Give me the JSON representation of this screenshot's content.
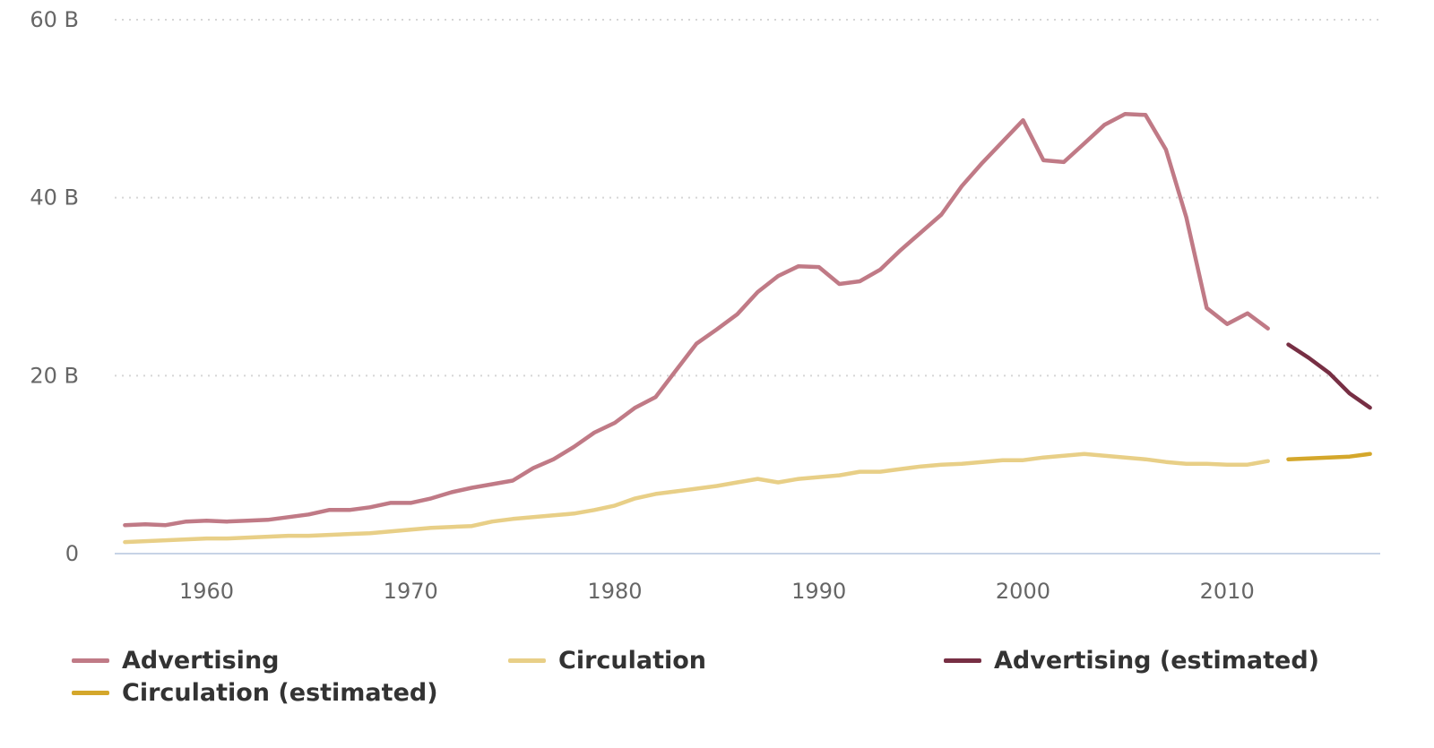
{
  "chart_data": {
    "type": "line",
    "title": "",
    "xlabel": "",
    "ylabel": "",
    "xlim": [
      1955.5,
      2017.5
    ],
    "ylim": [
      0,
      60
    ],
    "x_ticks": [
      1960,
      1970,
      1980,
      1990,
      2000,
      2010
    ],
    "y_ticks": [
      {
        "value": 0,
        "label": "0"
      },
      {
        "value": 20,
        "label": "20 B"
      },
      {
        "value": 40,
        "label": "40 B"
      },
      {
        "value": 60,
        "label": "60 B"
      }
    ],
    "grid": "horizontal-dotted",
    "legend_position": "bottom",
    "series": [
      {
        "name": "Advertising",
        "color": "#c07a86",
        "x": [
          1956,
          1957,
          1958,
          1959,
          1960,
          1961,
          1962,
          1963,
          1964,
          1965,
          1966,
          1967,
          1968,
          1969,
          1970,
          1971,
          1972,
          1973,
          1974,
          1975,
          1976,
          1977,
          1978,
          1979,
          1980,
          1981,
          1982,
          1983,
          1984,
          1985,
          1986,
          1987,
          1988,
          1989,
          1990,
          1991,
          1992,
          1993,
          1994,
          1995,
          1996,
          1997,
          1998,
          1999,
          2000,
          2001,
          2002,
          2003,
          2004,
          2005,
          2006,
          2007,
          2008,
          2009,
          2010,
          2011,
          2012
        ],
        "values": [
          3.2,
          3.3,
          3.2,
          3.6,
          3.7,
          3.6,
          3.7,
          3.8,
          4.1,
          4.4,
          4.9,
          4.9,
          5.2,
          5.7,
          5.7,
          6.2,
          6.9,
          7.4,
          7.8,
          8.2,
          9.6,
          10.6,
          12.0,
          13.6,
          14.7,
          16.4,
          17.6,
          20.6,
          23.6,
          25.2,
          26.9,
          29.4,
          31.2,
          32.3,
          32.2,
          30.3,
          30.6,
          31.9,
          34.1,
          36.1,
          38.1,
          41.3,
          43.9,
          46.3,
          48.7,
          44.2,
          44.0,
          46.1,
          48.2,
          49.4,
          49.3,
          45.4,
          37.8,
          27.6,
          25.8,
          27.0,
          25.3
        ]
      },
      {
        "name": "Circulation",
        "color": "#e8cf87",
        "x": [
          1956,
          1957,
          1958,
          1959,
          1960,
          1961,
          1962,
          1963,
          1964,
          1965,
          1966,
          1967,
          1968,
          1969,
          1970,
          1971,
          1972,
          1973,
          1974,
          1975,
          1976,
          1977,
          1978,
          1979,
          1980,
          1981,
          1982,
          1983,
          1984,
          1985,
          1986,
          1987,
          1988,
          1989,
          1990,
          1991,
          1992,
          1993,
          1994,
          1995,
          1996,
          1997,
          1998,
          1999,
          2000,
          2001,
          2002,
          2003,
          2004,
          2005,
          2006,
          2007,
          2008,
          2009,
          2010,
          2011,
          2012
        ],
        "values": [
          1.3,
          1.4,
          1.5,
          1.6,
          1.7,
          1.7,
          1.8,
          1.9,
          2.0,
          2.0,
          2.1,
          2.2,
          2.3,
          2.5,
          2.7,
          2.9,
          3.0,
          3.1,
          3.6,
          3.9,
          4.1,
          4.3,
          4.5,
          4.9,
          5.4,
          6.2,
          6.7,
          7.0,
          7.3,
          7.6,
          8.0,
          8.4,
          8.0,
          8.4,
          8.6,
          8.8,
          9.2,
          9.2,
          9.5,
          9.8,
          10.0,
          10.1,
          10.3,
          10.5,
          10.5,
          10.8,
          11.0,
          11.2,
          11.0,
          10.8,
          10.6,
          10.3,
          10.1,
          10.1,
          10.0,
          10.0,
          10.4
        ]
      },
      {
        "name": "Advertising (estimated)",
        "color": "#772f44",
        "x": [
          2013,
          2014,
          2015,
          2016,
          2017
        ],
        "values": [
          23.5,
          22.0,
          20.3,
          18.0,
          16.4
        ]
      },
      {
        "name": "Circulation (estimated)",
        "color": "#d4a72b",
        "x": [
          2013,
          2014,
          2015,
          2016,
          2017
        ],
        "values": [
          10.6,
          10.7,
          10.8,
          10.9,
          11.2
        ]
      }
    ]
  }
}
